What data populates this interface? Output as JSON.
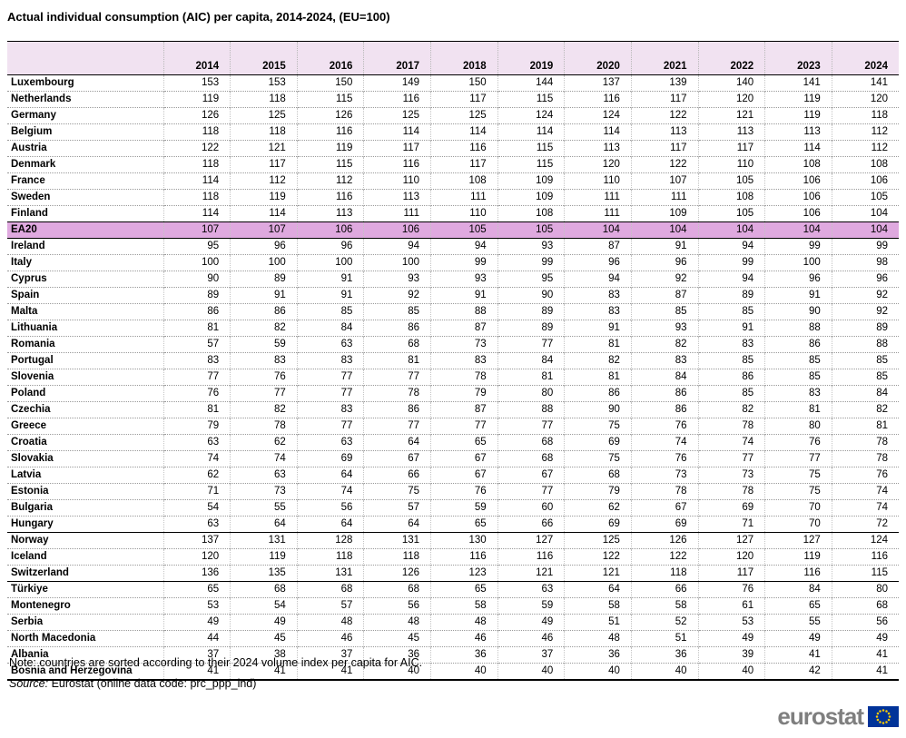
{
  "title": "Actual individual consumption (AIC) per capita, 2014-2024, (EU=100)",
  "note": "Note: countries are sorted according to their 2024 volume index per capita for AIC.",
  "source_label": "Source:",
  "source_text": "Eurostat (online data code: prc_ppp_ind)",
  "logo": {
    "text": "eurostat",
    "flag_icon": "eu-flag-icon"
  },
  "colors": {
    "header_band": "#F1E2F1",
    "highlight_row": "#DFA9DF",
    "rule_black": "#000000",
    "logo_gray": "#7F7F7F",
    "flag_blue": "#003399",
    "star_yellow": "#FFCC00"
  },
  "chart_data": {
    "type": "table",
    "title": "Actual individual consumption (AIC) per capita, 2014-2024, (EU=100)",
    "categories": [
      "2014",
      "2015",
      "2016",
      "2017",
      "2018",
      "2019",
      "2020",
      "2021",
      "2022",
      "2023",
      "2024"
    ],
    "corner_label": "",
    "highlight_rows": [
      "EA20"
    ],
    "rules_above": [
      "EA20",
      "Ireland",
      "Norway",
      "Türkiye"
    ],
    "rows": [
      {
        "name": "Luxembourg",
        "values": [
          153,
          153,
          150,
          149,
          150,
          144,
          137,
          139,
          140,
          141,
          141
        ]
      },
      {
        "name": "Netherlands",
        "values": [
          119,
          118,
          115,
          116,
          117,
          115,
          116,
          117,
          120,
          119,
          120
        ]
      },
      {
        "name": "Germany",
        "values": [
          126,
          125,
          126,
          125,
          125,
          124,
          124,
          122,
          121,
          119,
          118
        ]
      },
      {
        "name": "Belgium",
        "values": [
          118,
          118,
          116,
          114,
          114,
          114,
          114,
          113,
          113,
          113,
          112
        ]
      },
      {
        "name": "Austria",
        "values": [
          122,
          121,
          119,
          117,
          116,
          115,
          113,
          117,
          117,
          114,
          112
        ]
      },
      {
        "name": "Denmark",
        "values": [
          118,
          117,
          115,
          116,
          117,
          115,
          120,
          122,
          110,
          108,
          108
        ]
      },
      {
        "name": "France",
        "values": [
          114,
          112,
          112,
          110,
          108,
          109,
          110,
          107,
          105,
          106,
          106
        ]
      },
      {
        "name": "Sweden",
        "values": [
          118,
          119,
          116,
          113,
          111,
          109,
          111,
          111,
          108,
          106,
          105
        ]
      },
      {
        "name": "Finland",
        "values": [
          114,
          114,
          113,
          111,
          110,
          108,
          111,
          109,
          105,
          106,
          104
        ]
      },
      {
        "name": "EA20",
        "values": [
          107,
          107,
          106,
          106,
          105,
          105,
          104,
          104,
          104,
          104,
          104
        ]
      },
      {
        "name": "Ireland",
        "values": [
          95,
          96,
          96,
          94,
          94,
          93,
          87,
          91,
          94,
          99,
          99
        ]
      },
      {
        "name": "Italy",
        "values": [
          100,
          100,
          100,
          100,
          99,
          99,
          96,
          96,
          99,
          100,
          98
        ]
      },
      {
        "name": "Cyprus",
        "values": [
          90,
          89,
          91,
          93,
          93,
          95,
          94,
          92,
          94,
          96,
          96
        ]
      },
      {
        "name": "Spain",
        "values": [
          89,
          91,
          91,
          92,
          91,
          90,
          83,
          87,
          89,
          91,
          92
        ]
      },
      {
        "name": "Malta",
        "values": [
          86,
          86,
          85,
          85,
          88,
          89,
          83,
          85,
          85,
          90,
          92
        ]
      },
      {
        "name": "Lithuania",
        "values": [
          81,
          82,
          84,
          86,
          87,
          89,
          91,
          93,
          91,
          88,
          89
        ]
      },
      {
        "name": "Romania",
        "values": [
          57,
          59,
          63,
          68,
          73,
          77,
          81,
          82,
          83,
          86,
          88
        ]
      },
      {
        "name": "Portugal",
        "values": [
          83,
          83,
          83,
          81,
          83,
          84,
          82,
          83,
          85,
          85,
          85
        ]
      },
      {
        "name": "Slovenia",
        "values": [
          77,
          76,
          77,
          77,
          78,
          81,
          81,
          84,
          86,
          85,
          85
        ]
      },
      {
        "name": "Poland",
        "values": [
          76,
          77,
          77,
          78,
          79,
          80,
          86,
          86,
          85,
          83,
          84
        ]
      },
      {
        "name": "Czechia",
        "values": [
          81,
          82,
          83,
          86,
          87,
          88,
          90,
          86,
          82,
          81,
          82
        ]
      },
      {
        "name": "Greece",
        "values": [
          79,
          78,
          77,
          77,
          77,
          77,
          75,
          76,
          78,
          80,
          81
        ]
      },
      {
        "name": "Croatia",
        "values": [
          63,
          62,
          63,
          64,
          65,
          68,
          69,
          74,
          74,
          76,
          78
        ]
      },
      {
        "name": "Slovakia",
        "values": [
          74,
          74,
          69,
          67,
          67,
          68,
          75,
          76,
          77,
          77,
          78
        ]
      },
      {
        "name": "Latvia",
        "values": [
          62,
          63,
          64,
          66,
          67,
          67,
          68,
          73,
          73,
          75,
          76
        ]
      },
      {
        "name": "Estonia",
        "values": [
          71,
          73,
          74,
          75,
          76,
          77,
          79,
          78,
          78,
          75,
          74
        ]
      },
      {
        "name": "Bulgaria",
        "values": [
          54,
          55,
          56,
          57,
          59,
          60,
          62,
          67,
          69,
          70,
          74
        ]
      },
      {
        "name": "Hungary",
        "values": [
          63,
          64,
          64,
          64,
          65,
          66,
          69,
          69,
          71,
          70,
          72
        ]
      },
      {
        "name": "Norway",
        "values": [
          137,
          131,
          128,
          131,
          130,
          127,
          125,
          126,
          127,
          127,
          124
        ]
      },
      {
        "name": "Iceland",
        "values": [
          120,
          119,
          118,
          118,
          116,
          116,
          122,
          122,
          120,
          119,
          116
        ]
      },
      {
        "name": "Switzerland",
        "values": [
          136,
          135,
          131,
          126,
          123,
          121,
          121,
          118,
          117,
          116,
          115
        ]
      },
      {
        "name": "Türkiye",
        "values": [
          65,
          68,
          68,
          68,
          65,
          63,
          64,
          66,
          76,
          84,
          80
        ]
      },
      {
        "name": "Montenegro",
        "values": [
          53,
          54,
          57,
          56,
          58,
          59,
          58,
          58,
          61,
          65,
          68
        ]
      },
      {
        "name": "Serbia",
        "values": [
          49,
          49,
          48,
          48,
          48,
          49,
          51,
          52,
          53,
          55,
          56
        ]
      },
      {
        "name": "North Macedonia",
        "values": [
          44,
          45,
          46,
          45,
          46,
          46,
          48,
          51,
          49,
          49,
          49
        ]
      },
      {
        "name": "Albania",
        "values": [
          37,
          38,
          37,
          36,
          36,
          37,
          36,
          36,
          39,
          41,
          41
        ]
      },
      {
        "name": "Bosnia and Herzegovina",
        "values": [
          41,
          41,
          41,
          40,
          40,
          40,
          40,
          40,
          40,
          42,
          41
        ]
      }
    ]
  }
}
